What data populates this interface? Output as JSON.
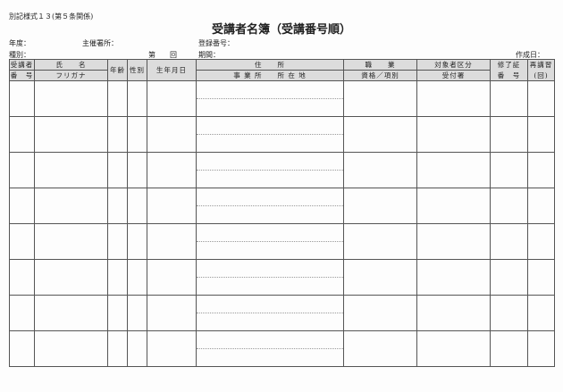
{
  "form_code": "別記様式１３(第５条関係)",
  "title": "受講者名簿（受講番号順）",
  "fields": {
    "year": "年度：",
    "organizer": "主催署所：",
    "registration": "登録番号：",
    "type": "種別：",
    "session_dai": "第",
    "session_kai": "回",
    "period": "期間：",
    "created": "作成日："
  },
  "headers": {
    "student_no_1": "受講者",
    "student_no_2": "番　号",
    "name": "氏　　名",
    "furigana": "フリガナ",
    "age": "年齢",
    "sex": "性別",
    "birth": "生年月日",
    "address": "住　　所",
    "office": "事 業 所　　所 在 地",
    "job": "職　　業",
    "qualification": "資格／項別",
    "category": "対象者区分",
    "office_recv": "受付署",
    "cert_1": "修了証",
    "cert_2": "番　号",
    "retake_1": "再講習",
    "retake_2": "(回)"
  }
}
